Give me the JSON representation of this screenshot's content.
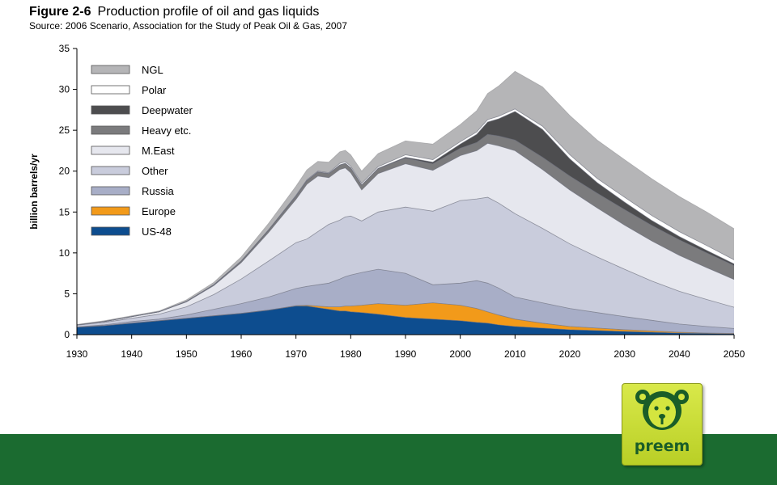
{
  "figure": {
    "label": "Figure 2-6",
    "title": "Production profile of oil and gas liquids",
    "source": "Source: 2006 Scenario, Association for the Study of Peak Oil & Gas, 2007"
  },
  "brand": {
    "logo_text": "preem"
  },
  "colors": {
    "band": "#1b6b30",
    "logo": "#c7dc33",
    "logo_text": "#1a5d28"
  },
  "chart_data": {
    "type": "area",
    "stacked": true,
    "ylabel": "billion barrels/yr",
    "xlabel": "",
    "xlim": [
      1930,
      2050
    ],
    "ylim": [
      0,
      35
    ],
    "xticks": [
      1930,
      1940,
      1950,
      1960,
      1970,
      1980,
      1990,
      2000,
      2010,
      2020,
      2030,
      2040,
      2050
    ],
    "yticks": [
      0,
      5,
      10,
      15,
      20,
      25,
      30,
      35
    ],
    "grid": false,
    "legend_position": "top-left",
    "x": [
      1930,
      1935,
      1940,
      1945,
      1950,
      1955,
      1960,
      1965,
      1970,
      1972,
      1974,
      1976,
      1978,
      1979,
      1980,
      1982,
      1985,
      1990,
      1995,
      2000,
      2003,
      2005,
      2007,
      2010,
      2015,
      2020,
      2025,
      2030,
      2035,
      2040,
      2045,
      2050
    ],
    "series": [
      {
        "name": "US-48",
        "color": "#0d4d8f",
        "values": [
          0.9,
          1.1,
          1.4,
          1.7,
          2.0,
          2.3,
          2.6,
          3.0,
          3.5,
          3.5,
          3.3,
          3.1,
          2.9,
          2.9,
          2.8,
          2.7,
          2.5,
          2.1,
          1.9,
          1.7,
          1.5,
          1.4,
          1.2,
          1.0,
          0.8,
          0.6,
          0.5,
          0.4,
          0.3,
          0.2,
          0.15,
          0.1
        ]
      },
      {
        "name": "Europe",
        "color": "#f29a1a",
        "values": [
          0.0,
          0.0,
          0.0,
          0.0,
          0.0,
          0.0,
          0.0,
          0.0,
          0.05,
          0.1,
          0.2,
          0.3,
          0.5,
          0.6,
          0.7,
          0.9,
          1.3,
          1.5,
          2.0,
          1.9,
          1.7,
          1.4,
          1.2,
          0.9,
          0.6,
          0.4,
          0.3,
          0.2,
          0.15,
          0.1,
          0.05,
          0.05
        ]
      },
      {
        "name": "Russia",
        "color": "#a8aec7",
        "values": [
          0.05,
          0.1,
          0.2,
          0.2,
          0.4,
          0.8,
          1.2,
          1.6,
          2.1,
          2.3,
          2.6,
          2.9,
          3.4,
          3.6,
          3.8,
          4.0,
          4.2,
          3.9,
          2.2,
          2.7,
          3.4,
          3.5,
          3.3,
          2.7,
          2.5,
          2.2,
          1.9,
          1.6,
          1.3,
          1.0,
          0.8,
          0.6
        ]
      },
      {
        "name": "Other",
        "color": "#c9ccdc",
        "values": [
          0.2,
          0.3,
          0.4,
          0.6,
          1.0,
          1.8,
          3.0,
          4.4,
          5.6,
          5.8,
          6.5,
          7.2,
          7.2,
          7.3,
          7.2,
          6.3,
          7.0,
          8.1,
          9.0,
          10.1,
          10.0,
          10.5,
          10.4,
          10.2,
          9.1,
          7.9,
          6.8,
          5.8,
          4.8,
          4.0,
          3.3,
          2.6
        ]
      },
      {
        "name": "M.East",
        "color": "#e6e7ee",
        "values": [
          0.05,
          0.1,
          0.2,
          0.3,
          0.6,
          1.1,
          2.0,
          3.5,
          5.3,
          6.7,
          6.8,
          5.7,
          6.2,
          6.0,
          5.3,
          3.8,
          4.7,
          5.3,
          5.0,
          5.5,
          5.9,
          6.6,
          7.0,
          7.7,
          7.2,
          6.6,
          6.0,
          5.4,
          4.9,
          4.4,
          3.9,
          3.4
        ]
      },
      {
        "name": "Heavy etc.",
        "color": "#7b7b7d",
        "values": [
          0.0,
          0.0,
          0.0,
          0.0,
          0.05,
          0.1,
          0.2,
          0.3,
          0.4,
          0.45,
          0.5,
          0.5,
          0.55,
          0.55,
          0.6,
          0.6,
          0.6,
          0.7,
          0.8,
          0.9,
          1.0,
          1.1,
          1.2,
          1.3,
          1.5,
          1.7,
          1.8,
          1.9,
          1.9,
          1.9,
          1.8,
          1.7
        ]
      },
      {
        "name": "Deepwater",
        "color": "#4d4d4f",
        "values": [
          0.0,
          0.0,
          0.0,
          0.0,
          0.0,
          0.0,
          0.0,
          0.0,
          0.0,
          0.0,
          0.0,
          0.0,
          0.0,
          0.0,
          0.0,
          0.0,
          0.05,
          0.1,
          0.2,
          0.5,
          1.0,
          1.5,
          2.1,
          3.5,
          3.4,
          2.1,
          1.3,
          0.9,
          0.6,
          0.4,
          0.3,
          0.2
        ]
      },
      {
        "name": "Polar",
        "color": "#ffffff",
        "values": [
          0.0,
          0.0,
          0.0,
          0.0,
          0.0,
          0.0,
          0.0,
          0.0,
          0.1,
          0.1,
          0.1,
          0.1,
          0.2,
          0.2,
          0.2,
          0.2,
          0.2,
          0.3,
          0.3,
          0.3,
          0.3,
          0.3,
          0.3,
          0.3,
          0.4,
          0.5,
          0.5,
          0.6,
          0.6,
          0.6,
          0.6,
          0.5
        ]
      },
      {
        "name": "NGL",
        "color": "#b5b5b7",
        "values": [
          0.05,
          0.1,
          0.1,
          0.1,
          0.2,
          0.3,
          0.5,
          0.8,
          1.1,
          1.2,
          1.2,
          1.3,
          1.4,
          1.4,
          1.4,
          1.5,
          1.6,
          1.7,
          1.9,
          2.1,
          2.6,
          3.2,
          3.7,
          4.6,
          4.8,
          4.8,
          4.7,
          4.6,
          4.5,
          4.3,
          4.1,
          3.8
        ]
      }
    ]
  }
}
